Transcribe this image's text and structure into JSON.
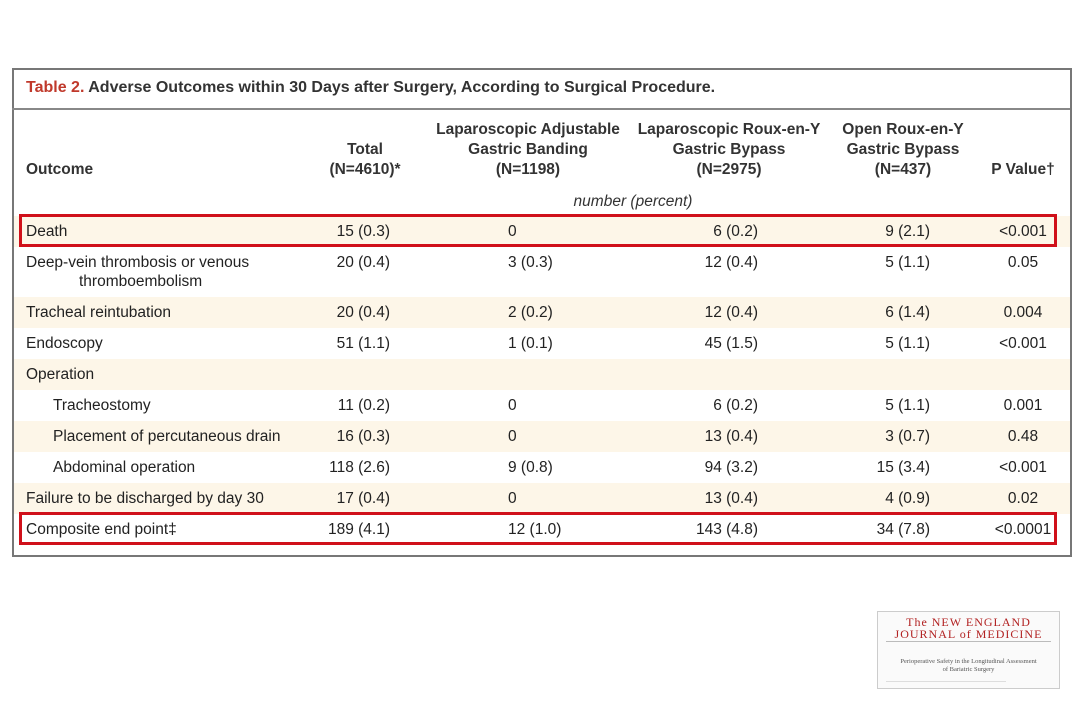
{
  "table": {
    "title_label": "Table 2.",
    "title": "Adverse Outcomes within 30 Days after Surgery, According to Surgical Procedure.",
    "headers": [
      [
        "Outcome"
      ],
      [
        "Total",
        "(N=4610)*"
      ],
      [
        "Laparoscopic Adjustable",
        "Gastric Banding",
        "(N=1198)"
      ],
      [
        "Laparoscopic Roux-en-Y",
        "Gastric Bypass",
        "(N=2975)"
      ],
      [
        "Open Roux-en-Y",
        "Gastric Bypass",
        "(N=437)"
      ],
      [
        "P Value†"
      ]
    ],
    "unit_note": "number (percent)",
    "rows": [
      {
        "label": [
          "Death"
        ],
        "cells": [
          "15 (0.3)",
          "0",
          "6 (0.2)",
          "9 (2.1)",
          "<0.001"
        ]
      },
      {
        "label": [
          "Deep-vein thrombosis or venous",
          "thromboembolism"
        ],
        "cells": [
          "20 (0.4)",
          "3 (0.3)",
          "12 (0.4)",
          "5 (1.1)",
          "0.05"
        ]
      },
      {
        "label": [
          "Tracheal reintubation"
        ],
        "cells": [
          "20 (0.4)",
          "2 (0.2)",
          "12 (0.4)",
          "6 (1.4)",
          "0.004"
        ]
      },
      {
        "label": [
          "Endoscopy"
        ],
        "cells": [
          "51 (1.1)",
          "1 (0.1)",
          "45 (1.5)",
          "5 (1.1)",
          "<0.001"
        ]
      },
      {
        "label": [
          "Operation"
        ],
        "cells": [],
        "subrows": [
          {
            "label": [
              "Tracheostomy"
            ],
            "cells": [
              "11 (0.2)",
              "0",
              "6 (0.2)",
              "5 (1.1)",
              "0.001"
            ]
          },
          {
            "label": [
              "Placement of percutaneous drain"
            ],
            "cells": [
              "16 (0.3)",
              "0",
              "13 (0.4)",
              "3 (0.7)",
              "0.48"
            ]
          },
          {
            "label": [
              "Abdominal operation"
            ],
            "cells": [
              "118 (2.6)",
              "9 (0.8)",
              "94 (3.2)",
              "15 (3.4)",
              "<0.001"
            ]
          }
        ]
      },
      {
        "label": [
          "Failure to be discharged by day 30"
        ],
        "cells": [
          "17 (0.4)",
          "0",
          "13 (0.4)",
          "4 (0.9)",
          "0.02"
        ]
      },
      {
        "label": [
          "Composite end point‡"
        ],
        "cells": [
          "189 (4.1)",
          "12 (1.0)",
          "143 (4.8)",
          "34 (7.8)",
          "<0.0001"
        ]
      }
    ],
    "highlighted_rows": [
      "Death",
      "Composite end point‡"
    ]
  },
  "journal": {
    "name_lines": [
      "The NEW ENGLAND",
      "JOURNAL of MEDICINE"
    ],
    "article_title": [
      "Perioperative Safety in the Longitudinal Assessment",
      "of Bariatric Surgery"
    ]
  }
}
